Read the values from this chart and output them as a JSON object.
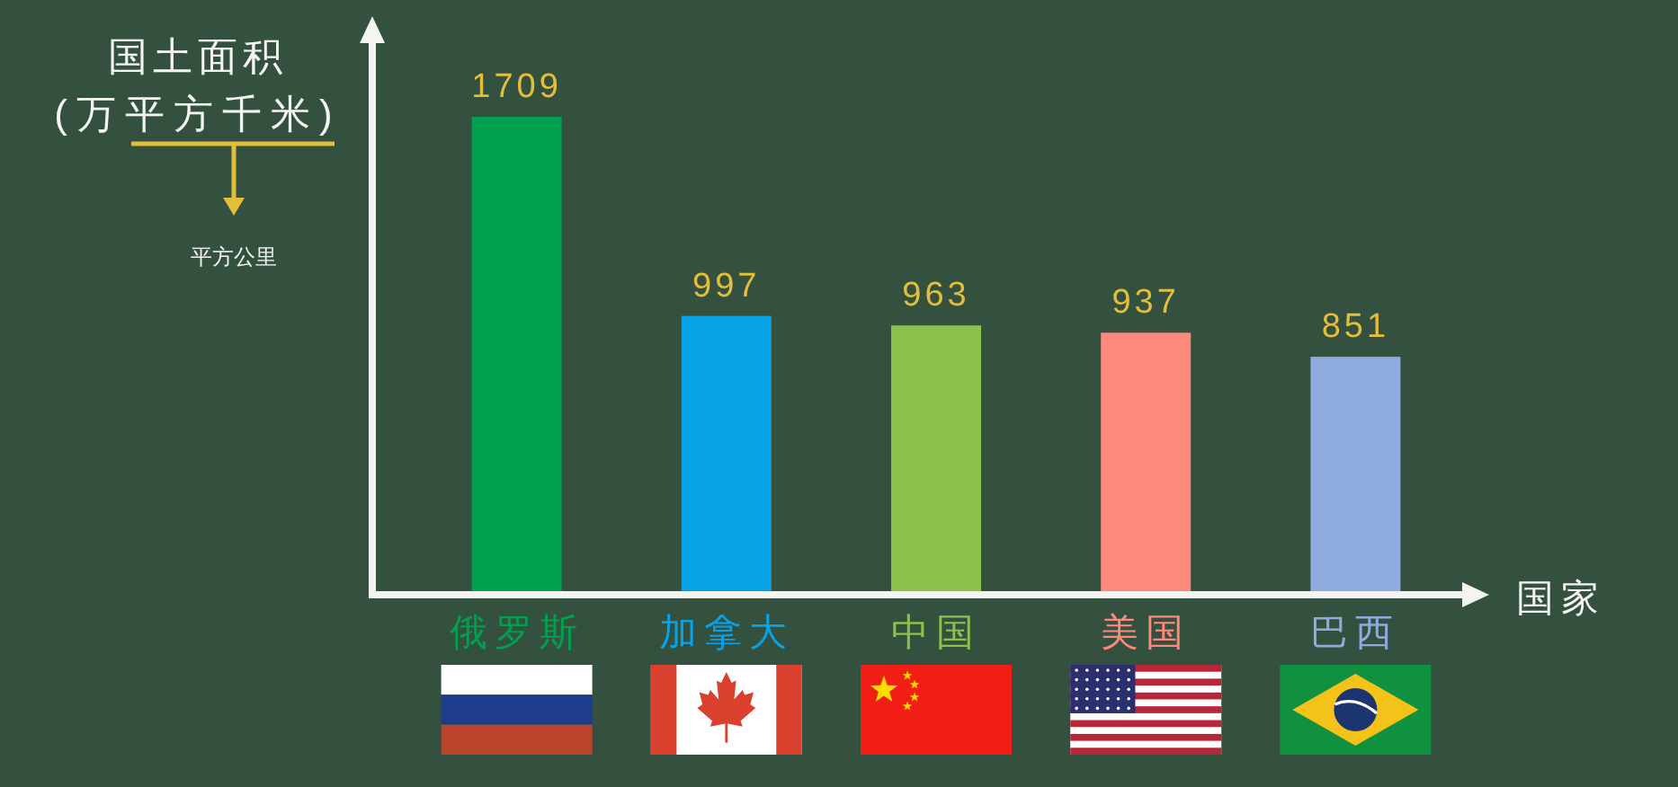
{
  "chart_data": {
    "type": "bar",
    "ylabel": "国土面积\n(万平方千米)",
    "xlabel": "国家",
    "categories": [
      "俄罗斯",
      "加拿大",
      "中国",
      "美国",
      "巴西"
    ],
    "values": [
      1709,
      997,
      963,
      937,
      851
    ],
    "colors": [
      "#00a04e",
      "#0aa2e6",
      "#8cc14c",
      "#fd887b",
      "#8faadd"
    ],
    "data_labels": true,
    "annotations": [
      "平方公里"
    ]
  }
}
